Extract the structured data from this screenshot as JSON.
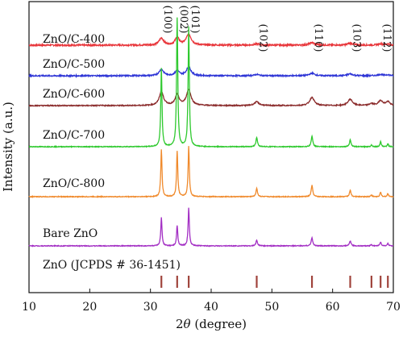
{
  "chart_data": {
    "type": "line",
    "title": "",
    "xlabel_prefix": "2",
    "xlabel_theta": "θ",
    "xlabel_suffix": " (degree)",
    "ylabel": "Intensity (a.u.)",
    "xlim": [
      10,
      70
    ],
    "x_ticks": [
      10,
      20,
      30,
      40,
      50,
      60,
      70
    ],
    "grid": false,
    "peak_labels": [
      {
        "label": "(100)",
        "x": 31.8
      },
      {
        "label": "(002)",
        "x": 34.4
      },
      {
        "label": "(101)",
        "x": 36.3
      },
      {
        "label": "(102)",
        "x": 47.5
      },
      {
        "label": "(110)",
        "x": 56.6
      },
      {
        "label": "(103)",
        "x": 62.9
      },
      {
        "label": "(112)",
        "x": 67.9
      }
    ],
    "series": [
      {
        "name": "ZnO/C-400",
        "color": "#e8353a",
        "noise": 0.012,
        "peaks": [
          [
            31.8,
            0.11,
            0.45
          ],
          [
            34.4,
            0.12,
            0.4
          ],
          [
            36.3,
            0.17,
            0.5
          ],
          [
            47.5,
            0.02,
            0.5
          ],
          [
            56.6,
            0.04,
            0.5
          ],
          [
            62.9,
            0.03,
            0.5
          ],
          [
            67.9,
            0.02,
            0.5
          ],
          [
            69.1,
            0.015,
            0.4
          ]
        ]
      },
      {
        "name": "ZnO/C-500",
        "color": "#2e35d6",
        "noise": 0.01,
        "peaks": [
          [
            31.8,
            0.1,
            0.45
          ],
          [
            34.4,
            0.08,
            0.4
          ],
          [
            36.3,
            0.14,
            0.45
          ],
          [
            47.5,
            0.02,
            0.5
          ],
          [
            56.6,
            0.04,
            0.5
          ],
          [
            62.9,
            0.03,
            0.5
          ],
          [
            67.9,
            0.02,
            0.5
          ],
          [
            69.1,
            0.015,
            0.4
          ]
        ]
      },
      {
        "name": "ZnO/C-600",
        "color": "#8b2c2c",
        "noise": 0.008,
        "peaks": [
          [
            31.8,
            0.22,
            0.42
          ],
          [
            34.4,
            0.17,
            0.38
          ],
          [
            36.3,
            0.25,
            0.45
          ],
          [
            47.5,
            0.06,
            0.45
          ],
          [
            56.6,
            0.13,
            0.45
          ],
          [
            62.9,
            0.1,
            0.45
          ],
          [
            66.4,
            0.03,
            0.4
          ],
          [
            67.9,
            0.08,
            0.4
          ],
          [
            69.1,
            0.06,
            0.4
          ]
        ]
      },
      {
        "name": "ZnO/C-700",
        "color": "#2ec92e",
        "noise": 0.006,
        "peaks": [
          [
            31.8,
            1.25,
            0.12
          ],
          [
            34.4,
            2.05,
            0.12
          ],
          [
            36.3,
            1.9,
            0.12
          ],
          [
            47.5,
            0.15,
            0.15
          ],
          [
            56.6,
            0.17,
            0.15
          ],
          [
            62.9,
            0.11,
            0.15
          ],
          [
            66.4,
            0.03,
            0.12
          ],
          [
            67.9,
            0.08,
            0.12
          ],
          [
            69.1,
            0.05,
            0.12
          ]
        ]
      },
      {
        "name": "ZnO/C-800",
        "color": "#f08a2c",
        "noise": 0.006,
        "peaks": [
          [
            31.8,
            0.75,
            0.12
          ],
          [
            34.4,
            0.72,
            0.12
          ],
          [
            36.3,
            0.8,
            0.12
          ],
          [
            47.5,
            0.13,
            0.15
          ],
          [
            56.6,
            0.18,
            0.15
          ],
          [
            62.9,
            0.1,
            0.15
          ],
          [
            66.4,
            0.03,
            0.12
          ],
          [
            67.9,
            0.07,
            0.12
          ],
          [
            69.1,
            0.05,
            0.12
          ]
        ]
      },
      {
        "name": "Bare ZnO",
        "color": "#a32fc4",
        "noise": 0.006,
        "peaks": [
          [
            31.8,
            0.45,
            0.12
          ],
          [
            34.4,
            0.32,
            0.12
          ],
          [
            36.3,
            0.6,
            0.12
          ],
          [
            47.5,
            0.09,
            0.15
          ],
          [
            56.6,
            0.13,
            0.15
          ],
          [
            62.9,
            0.08,
            0.15
          ],
          [
            66.4,
            0.02,
            0.12
          ],
          [
            67.9,
            0.06,
            0.12
          ],
          [
            69.1,
            0.04,
            0.12
          ]
        ]
      }
    ],
    "reference": {
      "name": "ZnO (JCPDS # 36-1451)",
      "color": "#a0443c",
      "x": [
        31.8,
        34.4,
        36.3,
        47.5,
        56.6,
        62.9,
        66.4,
        67.9,
        69.1
      ]
    }
  }
}
